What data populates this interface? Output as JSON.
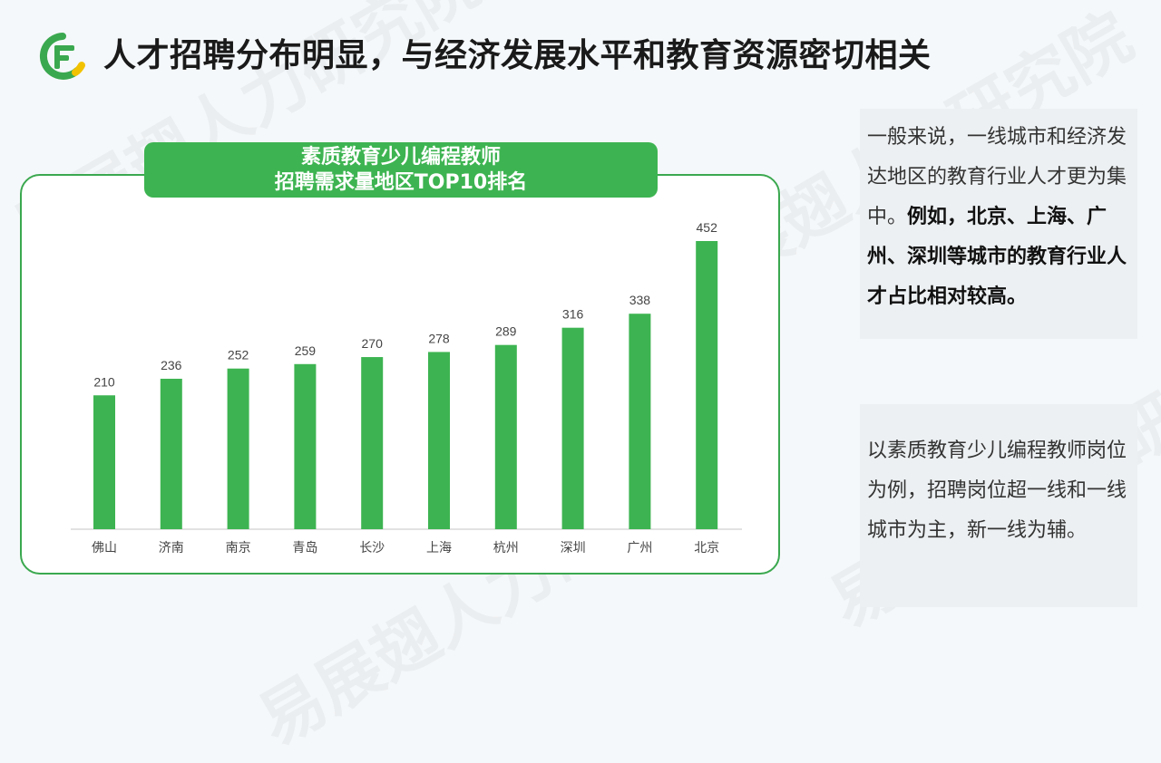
{
  "header": {
    "title": "人才招聘分布明显，与经济发展水平和教育资源密切相关"
  },
  "watermark": {
    "text": "易展翅人力研究院"
  },
  "colors": {
    "accent_green": "#3db451",
    "logo_green": "#3aa84f",
    "logo_yellow": "#f2c200",
    "panel_bg": "#edf0f2"
  },
  "chart_data": {
    "type": "bar",
    "title_line1": "素质教育少儿编程教师",
    "title_line2": "招聘需求量地区TOP10排名",
    "categories": [
      "佛山",
      "济南",
      "南京",
      "青岛",
      "长沙",
      "上海",
      "杭州",
      "深圳",
      "广州",
      "北京"
    ],
    "values": [
      210,
      236,
      252,
      259,
      270,
      278,
      289,
      316,
      338,
      452
    ],
    "ylim": [
      0,
      452
    ],
    "grid": false,
    "legend": "none",
    "bar_color": "#3db451"
  },
  "panel1": {
    "normal": "一般来说，一线城市和经济发达地区的教育行业人才更为集中。",
    "bold": "例如，北京、上海、广州、深圳等城市的教育行业人才占比相对较高。"
  },
  "panel2": {
    "text": "以素质教育少儿编程教师岗位为例，招聘岗位超一线和一线城市为主，新一线为辅。"
  }
}
